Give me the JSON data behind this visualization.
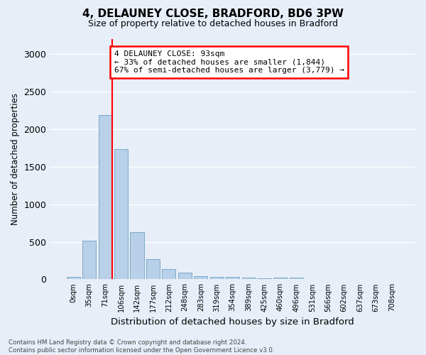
{
  "title1": "4, DELAUNEY CLOSE, BRADFORD, BD6 3PW",
  "title2": "Size of property relative to detached houses in Bradford",
  "xlabel": "Distribution of detached houses by size in Bradford",
  "ylabel": "Number of detached properties",
  "bins": [
    "0sqm",
    "35sqm",
    "71sqm",
    "106sqm",
    "142sqm",
    "177sqm",
    "212sqm",
    "248sqm",
    "283sqm",
    "319sqm",
    "354sqm",
    "389sqm",
    "425sqm",
    "460sqm",
    "496sqm",
    "531sqm",
    "566sqm",
    "602sqm",
    "637sqm",
    "673sqm",
    "708sqm"
  ],
  "values": [
    30,
    510,
    2185,
    1735,
    625,
    270,
    135,
    90,
    45,
    35,
    30,
    20,
    15,
    25,
    20,
    5,
    0,
    0,
    0,
    0,
    0
  ],
  "bar_color": "#b8d0e8",
  "bar_edge_color": "#7aaac8",
  "vline_x": 2.42,
  "vline_color": "red",
  "annotation_text": "4 DELAUNEY CLOSE: 93sqm\n← 33% of detached houses are smaller (1,844)\n67% of semi-detached houses are larger (3,779) →",
  "annotation_box_color": "white",
  "annotation_box_edgecolor": "red",
  "ylim": [
    0,
    3200
  ],
  "yticks": [
    0,
    500,
    1000,
    1500,
    2000,
    2500,
    3000
  ],
  "footnote": "Contains HM Land Registry data © Crown copyright and database right 2024.\nContains public sector information licensed under the Open Government Licence v3.0.",
  "background_color": "#e8eef8",
  "grid_color": "white"
}
